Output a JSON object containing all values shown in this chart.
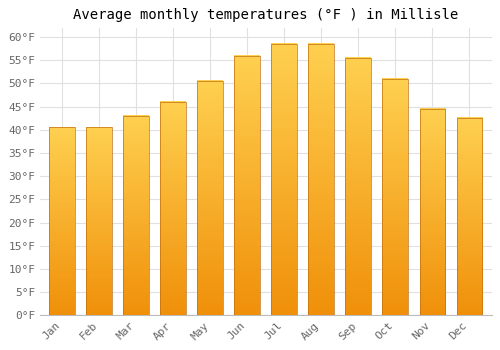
{
  "title": "Average monthly temperatures (°F ) in Millisle",
  "months": [
    "Jan",
    "Feb",
    "Mar",
    "Apr",
    "May",
    "Jun",
    "Jul",
    "Aug",
    "Sep",
    "Oct",
    "Nov",
    "Dec"
  ],
  "values": [
    40.5,
    40.5,
    43.0,
    46.0,
    50.5,
    56.0,
    58.5,
    58.5,
    55.5,
    51.0,
    44.5,
    42.5
  ],
  "bar_color_top": "#FFD050",
  "bar_color_bottom": "#F0900A",
  "bar_edge_color": "#C07010",
  "ylim": [
    0,
    62
  ],
  "yticks": [
    0,
    5,
    10,
    15,
    20,
    25,
    30,
    35,
    40,
    45,
    50,
    55,
    60
  ],
  "background_color": "#ffffff",
  "plot_bg_color": "#ffffff",
  "grid_color": "#e0e0e0",
  "title_fontsize": 10,
  "tick_fontsize": 8,
  "font_family": "monospace",
  "bar_width": 0.7
}
